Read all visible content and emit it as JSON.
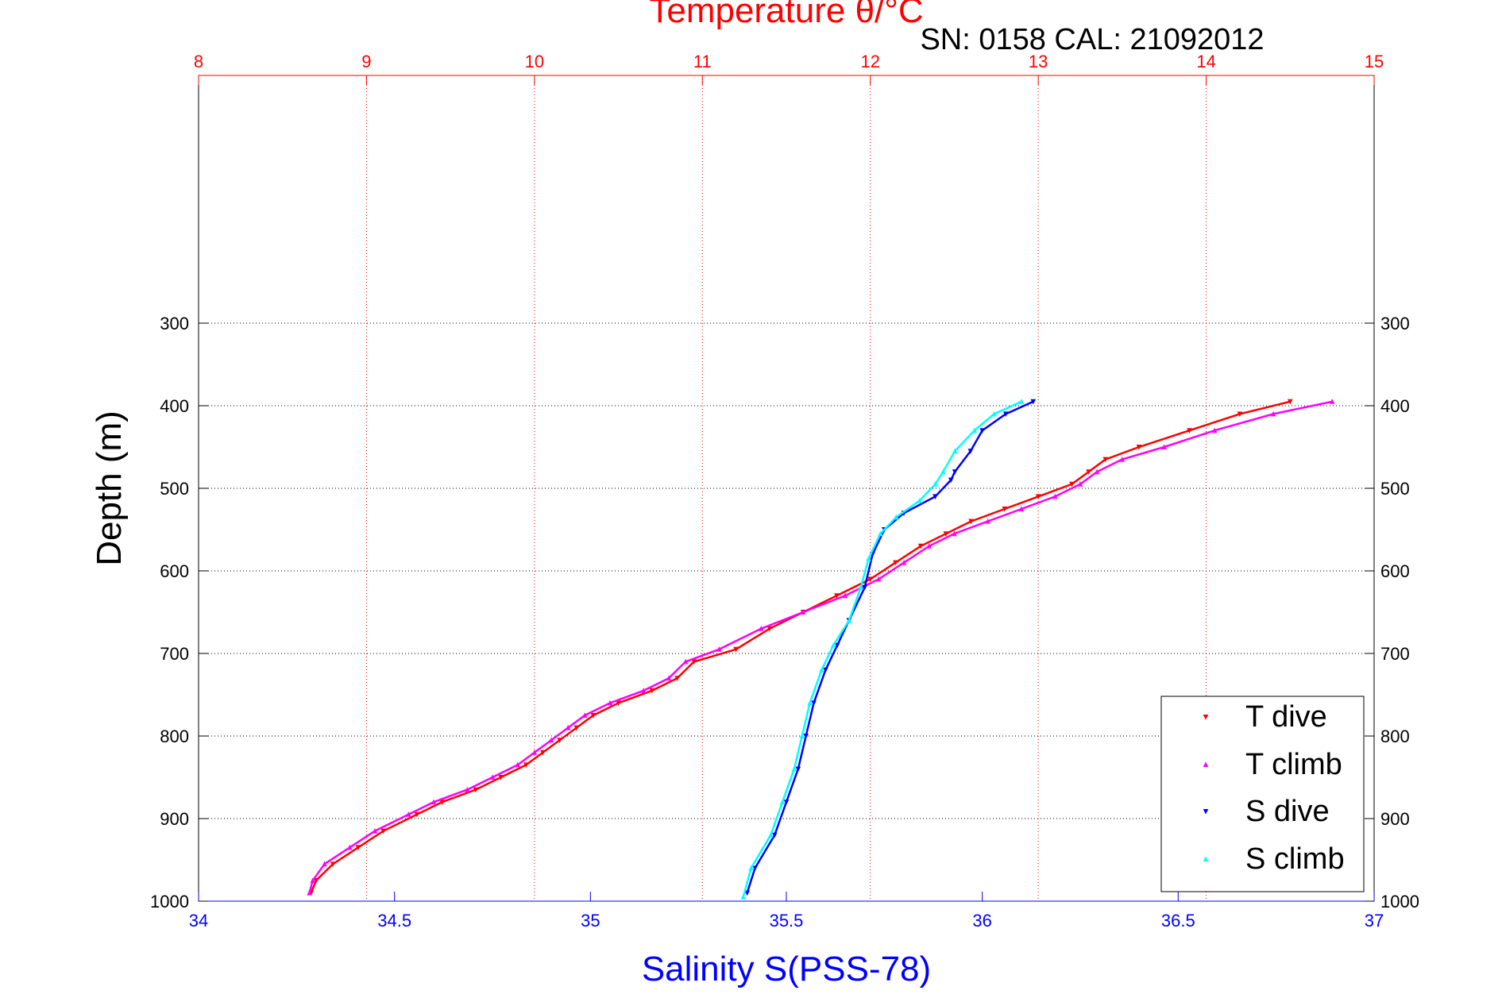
{
  "chart_data": {
    "type": "scatter",
    "title": "Temperature θ/°C",
    "subtitle": "SN: 0158  CAL: 21092012",
    "ylabel": "Depth (m)",
    "xlabel_bottom": "Salinity S(PSS-78)",
    "x_top": {
      "lim": [
        8,
        15
      ],
      "ticks": [
        "8",
        "9",
        "10",
        "11",
        "12",
        "13",
        "14",
        "15"
      ]
    },
    "x_bottom": {
      "lim": [
        34,
        37
      ],
      "ticks": [
        "34",
        "34.5",
        "35",
        "35.5",
        "36",
        "36.5",
        "37"
      ]
    },
    "y": {
      "lim": [
        0,
        1000
      ],
      "reversed": true,
      "ticks": [
        "300",
        "400",
        "500",
        "600",
        "700",
        "800",
        "900",
        "1000"
      ]
    },
    "grid": "on",
    "legend_position": "bottom-right",
    "colors": {
      "title": "#ff0000",
      "salinity_axis": "#0000ff",
      "t_dive": "#ff0000",
      "t_climb": "#ff00ff",
      "s_dive": "#0000ff",
      "s_climb": "#00ffff"
    },
    "series": [
      {
        "name": "T dive",
        "axis": "temperature",
        "marker": "down-triangle",
        "points": [
          [
            14.5,
            395
          ],
          [
            14.2,
            410
          ],
          [
            13.9,
            430
          ],
          [
            13.6,
            450
          ],
          [
            13.4,
            465
          ],
          [
            13.3,
            480
          ],
          [
            13.2,
            495
          ],
          [
            13.0,
            510
          ],
          [
            12.8,
            525
          ],
          [
            12.6,
            540
          ],
          [
            12.45,
            555
          ],
          [
            12.3,
            570
          ],
          [
            12.15,
            590
          ],
          [
            12.0,
            610
          ],
          [
            11.8,
            630
          ],
          [
            11.6,
            650
          ],
          [
            11.4,
            670
          ],
          [
            11.2,
            695
          ],
          [
            10.95,
            710
          ],
          [
            10.85,
            730
          ],
          [
            10.7,
            745
          ],
          [
            10.5,
            760
          ],
          [
            10.35,
            775
          ],
          [
            10.25,
            790
          ],
          [
            10.15,
            805
          ],
          [
            10.05,
            820
          ],
          [
            9.95,
            835
          ],
          [
            9.8,
            850
          ],
          [
            9.65,
            865
          ],
          [
            9.45,
            880
          ],
          [
            9.3,
            895
          ],
          [
            9.1,
            915
          ],
          [
            8.95,
            935
          ],
          [
            8.8,
            955
          ],
          [
            8.7,
            975
          ],
          [
            8.67,
            990
          ]
        ]
      },
      {
        "name": "T climb",
        "axis": "temperature",
        "marker": "up-triangle",
        "points": [
          [
            14.75,
            395
          ],
          [
            14.4,
            410
          ],
          [
            14.05,
            430
          ],
          [
            13.75,
            450
          ],
          [
            13.5,
            465
          ],
          [
            13.35,
            480
          ],
          [
            13.25,
            495
          ],
          [
            13.1,
            510
          ],
          [
            12.9,
            525
          ],
          [
            12.7,
            540
          ],
          [
            12.5,
            555
          ],
          [
            12.35,
            570
          ],
          [
            12.2,
            590
          ],
          [
            12.05,
            610
          ],
          [
            11.85,
            630
          ],
          [
            11.6,
            650
          ],
          [
            11.35,
            670
          ],
          [
            11.1,
            695
          ],
          [
            10.9,
            710
          ],
          [
            10.8,
            730
          ],
          [
            10.65,
            745
          ],
          [
            10.45,
            760
          ],
          [
            10.3,
            775
          ],
          [
            10.2,
            790
          ],
          [
            10.1,
            805
          ],
          [
            10.0,
            820
          ],
          [
            9.9,
            835
          ],
          [
            9.75,
            850
          ],
          [
            9.6,
            865
          ],
          [
            9.4,
            880
          ],
          [
            9.25,
            895
          ],
          [
            9.05,
            915
          ],
          [
            8.9,
            935
          ],
          [
            8.75,
            955
          ],
          [
            8.68,
            975
          ],
          [
            8.66,
            990
          ]
        ]
      },
      {
        "name": "S dive",
        "axis": "salinity",
        "marker": "down-triangle",
        "points": [
          [
            36.13,
            395
          ],
          [
            36.06,
            410
          ],
          [
            36.0,
            430
          ],
          [
            35.97,
            455
          ],
          [
            35.93,
            480
          ],
          [
            35.92,
            490
          ],
          [
            35.88,
            510
          ],
          [
            35.8,
            530
          ],
          [
            35.75,
            550
          ],
          [
            35.72,
            580
          ],
          [
            35.7,
            620
          ],
          [
            35.66,
            660
          ],
          [
            35.63,
            690
          ],
          [
            35.6,
            720
          ],
          [
            35.57,
            760
          ],
          [
            35.55,
            800
          ],
          [
            35.53,
            840
          ],
          [
            35.5,
            880
          ],
          [
            35.47,
            920
          ],
          [
            35.42,
            960
          ],
          [
            35.4,
            990
          ]
        ]
      },
      {
        "name": "S climb",
        "axis": "salinity",
        "marker": "up-triangle",
        "points": [
          [
            36.1,
            395
          ],
          [
            36.03,
            410
          ],
          [
            35.98,
            430
          ],
          [
            35.93,
            455
          ],
          [
            35.9,
            480
          ],
          [
            35.88,
            495
          ],
          [
            35.84,
            515
          ],
          [
            35.78,
            535
          ],
          [
            35.74,
            555
          ],
          [
            35.71,
            585
          ],
          [
            35.69,
            620
          ],
          [
            35.66,
            660
          ],
          [
            35.62,
            690
          ],
          [
            35.59,
            720
          ],
          [
            35.56,
            760
          ],
          [
            35.54,
            800
          ],
          [
            35.52,
            840
          ],
          [
            35.49,
            880
          ],
          [
            35.46,
            920
          ],
          [
            35.41,
            960
          ],
          [
            35.39,
            995
          ]
        ]
      }
    ]
  }
}
